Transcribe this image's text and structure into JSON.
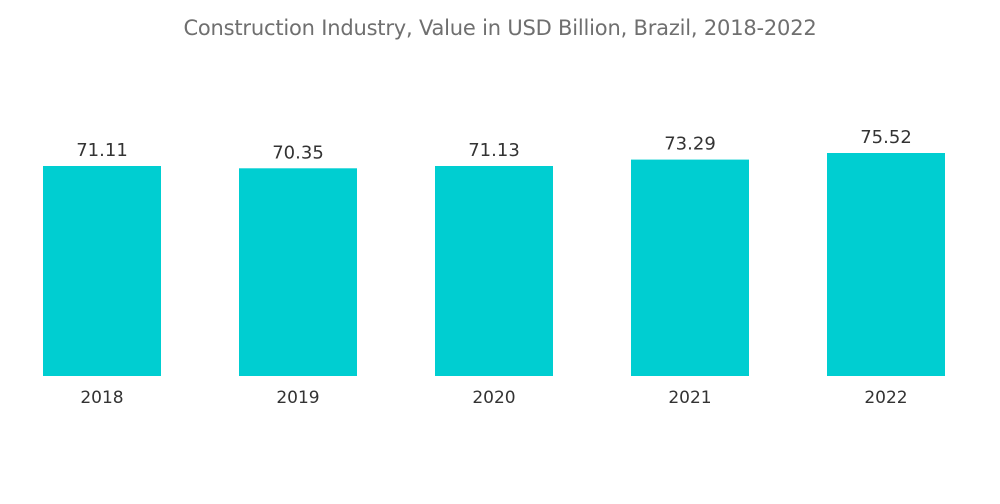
{
  "chart_data": {
    "type": "bar",
    "title": "Construction Industry, Value in USD Billion, Brazil, 2018-2022",
    "categories": [
      "2018",
      "2019",
      "2020",
      "2021",
      "2022"
    ],
    "values": [
      71.11,
      70.35,
      71.13,
      73.29,
      75.52
    ],
    "data_labels": [
      "71.11",
      "70.35",
      "71.13",
      "73.29",
      "75.52"
    ],
    "bar_color": "#00CED1",
    "xlabel": "",
    "ylabel": "",
    "ylim": [
      0,
      75.52
    ],
    "grid": false,
    "legend": "none"
  }
}
